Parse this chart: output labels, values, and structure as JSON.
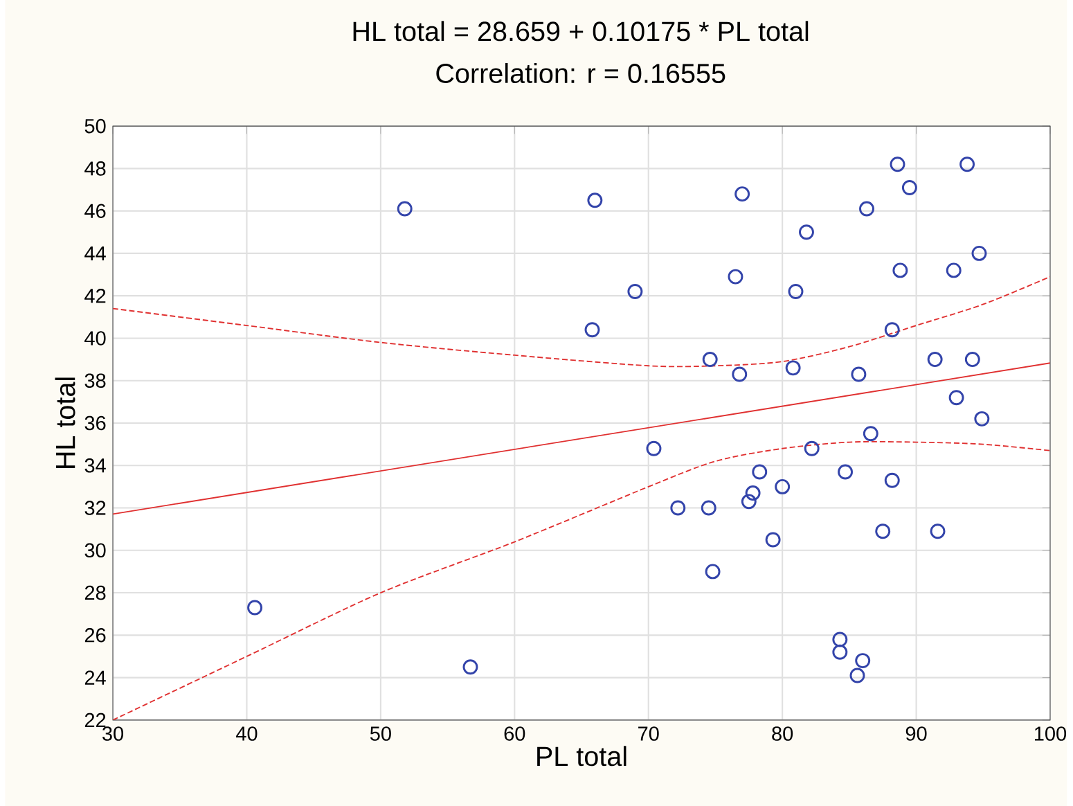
{
  "chart_data": {
    "type": "scatter",
    "title": "HL total = 28.659 + 0.10175 * PL total",
    "subtitle": "Correlation: r = 0.16555",
    "xlabel": "PL total",
    "ylabel": "HL total",
    "xlim": [
      30,
      100
    ],
    "ylim": [
      22,
      50
    ],
    "xticks": [
      30,
      40,
      50,
      60,
      70,
      80,
      90,
      100
    ],
    "yticks": [
      22,
      24,
      26,
      28,
      30,
      32,
      34,
      36,
      38,
      40,
      42,
      44,
      46,
      48,
      50
    ],
    "grid": true,
    "series": [
      {
        "marker": "circle",
        "color": "#3344aa",
        "x": [
          40.6,
          51.8,
          56.7,
          65.8,
          66,
          69,
          70.4,
          72.2,
          74.5,
          74.6,
          74.8,
          76.5,
          76.8,
          77,
          77.5,
          77.8,
          78.3,
          79.3,
          80,
          80.8,
          81,
          81.8,
          82.2,
          84.3,
          84.3,
          84.7,
          85.6,
          85.7,
          86,
          86.3,
          86.6,
          87.5,
          88.2,
          88.2,
          88.6,
          88.8,
          89.5,
          91.4,
          91.6,
          92.8,
          93,
          93.8,
          94.2,
          94.7,
          94.9
        ],
        "values": [
          27.3,
          46.1,
          24.5,
          40.4,
          46.5,
          42.2,
          34.8,
          32,
          32,
          39,
          29,
          42.9,
          38.3,
          46.8,
          32.3,
          32.7,
          33.7,
          30.5,
          33,
          38.6,
          42.2,
          45,
          34.8,
          25.8,
          25.2,
          33.7,
          24.1,
          38.3,
          24.8,
          46.1,
          35.5,
          30.9,
          33.3,
          40.4,
          48.2,
          43.2,
          47.1,
          39,
          30.9,
          43.2,
          37.2,
          48.2,
          39,
          44,
          36.2
        ]
      },
      {
        "type": "line",
        "marker": "none",
        "line_style": "solid",
        "color": "#e03030",
        "x": [
          30,
          100
        ],
        "values": [
          31.71,
          38.83
        ]
      },
      {
        "type": "line",
        "marker": "none",
        "line_style": "dashed",
        "color": "#e03030",
        "x": [
          30,
          40,
          50,
          60,
          70,
          75,
          80,
          85,
          90,
          95,
          100
        ],
        "values": [
          41.4,
          40.6,
          39.8,
          39.2,
          38.7,
          38.7,
          38.9,
          39.6,
          40.6,
          41.6,
          42.9
        ]
      },
      {
        "type": "line",
        "marker": "none",
        "line_style": "dashed",
        "color": "#e03030",
        "x": [
          30,
          40,
          50,
          60,
          70,
          75,
          80,
          85,
          90,
          95,
          100
        ],
        "values": [
          22.0,
          25.0,
          28.0,
          30.4,
          33.0,
          34.2,
          34.8,
          35.1,
          35.1,
          35.0,
          34.7
        ]
      }
    ]
  }
}
